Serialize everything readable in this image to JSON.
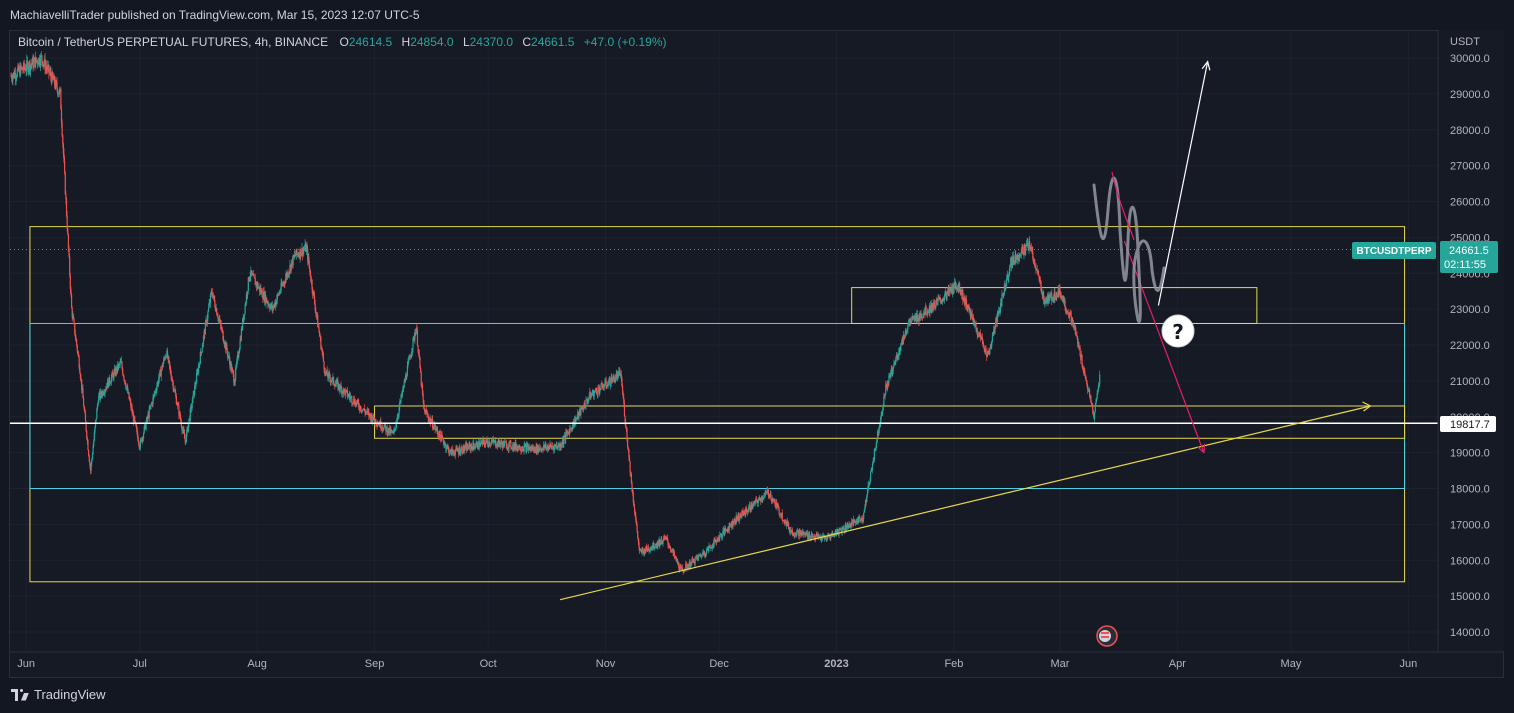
{
  "publish_info": "MachiavelliTrader published on TradingView.com, Mar 15, 2023 12:07 UTC-5",
  "legend": {
    "symbol": "Bitcoin / TetherUS PERPETUAL FUTURES, 4h, BINANCE",
    "o_label": "O",
    "o": "24614.5",
    "h_label": "H",
    "h": "24854.0",
    "l_label": "L",
    "l": "24370.0",
    "c_label": "C",
    "c": "24661.5",
    "change": "+47.0 (+0.19%)"
  },
  "price_axis": {
    "unit": "USDT",
    "ticks": [
      "30000.0",
      "29000.0",
      "28000.0",
      "27000.0",
      "26000.0",
      "25000.0",
      "24000.0",
      "23000.0",
      "22000.0",
      "21000.0",
      "20000.0",
      "19000.0",
      "18000.0",
      "17000.0",
      "16000.0",
      "15000.0",
      "14000.0"
    ]
  },
  "last_price": {
    "symbol_tag": "BTCUSDTPERP",
    "value": "24661.5",
    "countdown": "02:11:55",
    "color": "#26a69a"
  },
  "marked_level": {
    "value": "19817.7"
  },
  "time_axis": {
    "ticks": [
      "Jun",
      "Jul",
      "Aug",
      "Sep",
      "Oct",
      "Nov",
      "Dec",
      "2023",
      "Feb",
      "Mar",
      "Apr",
      "May",
      "Jun"
    ]
  },
  "annotation_question": "?",
  "footer": {
    "brand": "TradingView"
  },
  "colors": {
    "up": "#26a69a",
    "down": "#ef5350",
    "yellow": "#e6d84a",
    "cyan": "#4dd0e1",
    "pink": "#e91e63"
  },
  "chart_data": {
    "type": "candlestick",
    "timeframe": "4h",
    "ylim": [
      14000,
      30000
    ],
    "x_range": [
      "2022-05-28",
      "2023-06-12"
    ],
    "path_points": [
      [
        "2022-05-28",
        29500
      ],
      [
        "2022-06-05",
        30000
      ],
      [
        "2022-06-10",
        29000
      ],
      [
        "2022-06-13",
        23000
      ],
      [
        "2022-06-15",
        21500
      ],
      [
        "2022-06-18",
        18500
      ],
      [
        "2022-06-20",
        20500
      ],
      [
        "2022-06-26",
        21500
      ],
      [
        "2022-07-01",
        19200
      ],
      [
        "2022-07-08",
        21800
      ],
      [
        "2022-07-13",
        19300
      ],
      [
        "2022-07-20",
        23500
      ],
      [
        "2022-07-26",
        21000
      ],
      [
        "2022-07-30",
        24000
      ],
      [
        "2022-08-05",
        23000
      ],
      [
        "2022-08-11",
        24500
      ],
      [
        "2022-08-14",
        24700
      ],
      [
        "2022-08-19",
        21200
      ],
      [
        "2022-08-26",
        20500
      ],
      [
        "2022-08-31",
        20000
      ],
      [
        "2022-09-06",
        19500
      ],
      [
        "2022-09-12",
        22500
      ],
      [
        "2022-09-14",
        20200
      ],
      [
        "2022-09-21",
        19000
      ],
      [
        "2022-10-01",
        19300
      ],
      [
        "2022-10-13",
        19100
      ],
      [
        "2022-10-20",
        19200
      ],
      [
        "2022-10-28",
        20600
      ],
      [
        "2022-11-05",
        21200
      ],
      [
        "2022-11-08",
        18000
      ],
      [
        "2022-11-10",
        16200
      ],
      [
        "2022-11-17",
        16600
      ],
      [
        "2022-11-21",
        15700
      ],
      [
        "2022-11-28",
        16300
      ],
      [
        "2022-12-05",
        17100
      ],
      [
        "2022-12-14",
        17900
      ],
      [
        "2022-12-20",
        16800
      ],
      [
        "2022-12-29",
        16600
      ],
      [
        "2023-01-08",
        17200
      ],
      [
        "2023-01-14",
        20800
      ],
      [
        "2023-01-20",
        22600
      ],
      [
        "2023-01-28",
        23200
      ],
      [
        "2023-02-02",
        23700
      ],
      [
        "2023-02-10",
        21700
      ],
      [
        "2023-02-16",
        24300
      ],
      [
        "2023-02-21",
        24800
      ],
      [
        "2023-02-25",
        23200
      ],
      [
        "2023-03-01",
        23500
      ],
      [
        "2023-03-05",
        22400
      ],
      [
        "2023-03-10",
        20000
      ],
      [
        "2023-03-12",
        21500
      ],
      [
        "2023-03-14",
        24500
      ],
      [
        "2023-03-15",
        24661.5
      ]
    ],
    "drawings": {
      "range_box_outer": {
        "from": "2022-06-02",
        "to": "2023-05-31",
        "low": 15400,
        "high": 25300,
        "color": "#e6d84a"
      },
      "range_box_inner": {
        "from": "2022-06-02",
        "to": "2023-05-31",
        "low": 18000,
        "high": 22600,
        "color": "#4dd0e1"
      },
      "resistance_box": {
        "from": "2023-01-05",
        "to": "2023-04-22",
        "low": 22600,
        "high": 23600,
        "color": "#e6d84a"
      },
      "support_band": {
        "from": "2022-09-01",
        "to": "2023-05-31",
        "low": 19400,
        "high": 20300,
        "color": "#e6d84a"
      },
      "horizontal_level": {
        "value": 19817.7,
        "color": "#ffffff"
      },
      "trendline": {
        "points": [
          [
            "2022-10-20",
            14900
          ],
          [
            "2023-05-22",
            20300
          ]
        ],
        "color": "#e6d84a"
      },
      "arrow_up": {
        "points": [
          [
            "2023-03-27",
            23100
          ],
          [
            "2023-04-09",
            29900
          ]
        ],
        "color": "#ffffff"
      },
      "arrow_down": {
        "points": [
          [
            "2023-03-18",
            24900
          ],
          [
            "2023-04-08",
            19000
          ]
        ],
        "color": "#e91e63"
      }
    }
  }
}
